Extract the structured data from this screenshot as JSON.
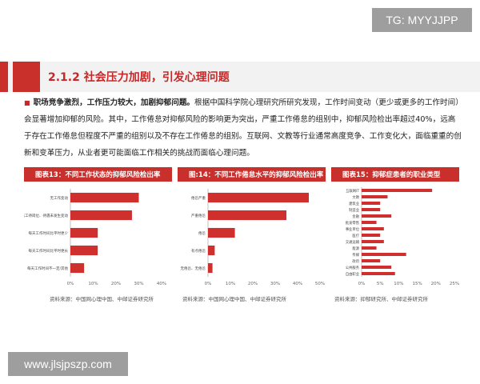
{
  "watermarks": {
    "top": "TG: MYYJJPP",
    "bottom": "www.jlsjpszp.com"
  },
  "section": {
    "title": "2.1.2 社会压力加剧，引发心理问题"
  },
  "paragraph": {
    "lead": "职场竞争激烈，工作压力较大，加剧抑郁问题。",
    "body": "根据中国科学院心理研究所研究发现，工作时间变动（更少或更多的工作时间）会显著增加抑郁的风险。其中，工作倦怠对抑郁风险的影响更为突出，严重工作倦怠的组别中，抑郁风险检出率超过40%，远高于存在工作倦怠但程度不严重的组别以及不存在工作倦怠的组别。互联网、文教等行业通常高度竞争、工作变化大，面临重重的创新和变革压力，从业者更可能面临工作相关的挑战而面临心理问题。"
  },
  "charts_meta": {
    "c13": {
      "title": "图表13：不同工作状态的抑郁风险检出率",
      "source": "资料来源：中国网心理中国、中邮证券研究所"
    },
    "c14": {
      "title": "图:14：不同工作倦怠水平的抑郁风险检出率",
      "source": "资料来源：中国网心理中国、中邮证券研究所"
    },
    "c15": {
      "title": "图表15：抑郁症患者的职业类型",
      "source": "资料来源：抑郁研究所、中邮证券研究所"
    }
  },
  "colors": {
    "accent": "#c9302c",
    "bar": "#d0302d",
    "title_text": "#c62828"
  },
  "chart_data": [
    {
      "type": "bar",
      "orientation": "horizontal",
      "title": "图表13：不同工作状态的抑郁风险检出率",
      "categories": [
        "无工作变动",
        "员工待岗位、待遇未发生变动",
        "每天工作时间比平时更少",
        "每天工作时间比平时更长",
        "每天工作时间不一定/其他"
      ],
      "values": [
        30,
        27,
        12,
        12,
        6
      ],
      "xticks": [
        "0%",
        "10%",
        "20%",
        "30%",
        "40%"
      ],
      "xlim": [
        0,
        40
      ]
    },
    {
      "type": "bar",
      "orientation": "horizontal",
      "title": "图:14：不同工作倦怠水平的抑郁风险检出率",
      "categories": [
        "倦怠严重",
        "严重倦怠",
        "倦怠",
        "有点倦怠",
        "无倦怠、无倦怠"
      ],
      "values": [
        45,
        35,
        12,
        3,
        2
      ],
      "xticks": [
        "0%",
        "10%",
        "20%",
        "30%",
        "40%",
        "50%"
      ],
      "xlim": [
        0,
        50
      ]
    },
    {
      "type": "bar",
      "orientation": "horizontal",
      "title": "图表15：抑郁症患者的职业类型",
      "categories": [
        "互联网IT",
        "文教",
        "建筑业",
        "制造业",
        "金融",
        "批发零售",
        "事业单位",
        "医疗",
        "交通运输",
        "能源",
        "传媒",
        "政府",
        "公共服务",
        "自由职业"
      ],
      "values": [
        19,
        7,
        5,
        5,
        8,
        4,
        6,
        5,
        6,
        4,
        12,
        5,
        8,
        9
      ],
      "xticks": [
        "0%",
        "5%",
        "10%",
        "15%",
        "20%",
        "25%"
      ],
      "xlim": [
        0,
        25
      ]
    }
  ]
}
